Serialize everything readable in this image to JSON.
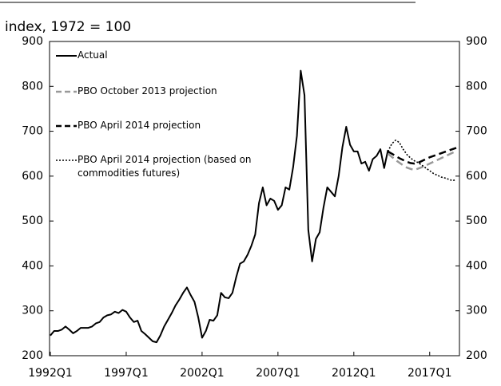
{
  "chart_data": {
    "type": "line",
    "axis_label": "index, 1972 = 100",
    "categories": [
      "1992Q1",
      null,
      null,
      null,
      null,
      null,
      null,
      null,
      null,
      null,
      null,
      null,
      null,
      null,
      null,
      null,
      null,
      null,
      null,
      null,
      "1997Q1",
      null,
      null,
      null,
      null,
      null,
      null,
      null,
      null,
      null,
      null,
      null,
      null,
      null,
      null,
      null,
      null,
      null,
      null,
      null,
      "2002Q1",
      null,
      null,
      null,
      null,
      null,
      null,
      null,
      null,
      null,
      null,
      null,
      null,
      null,
      null,
      null,
      null,
      null,
      null,
      null,
      "2007Q1",
      null,
      null,
      null,
      null,
      null,
      null,
      null,
      null,
      null,
      null,
      null,
      null,
      null,
      null,
      null,
      null,
      null,
      null,
      null,
      "2012Q1",
      null,
      null,
      null,
      null,
      null,
      null,
      null,
      null,
      null,
      null,
      null,
      null,
      null,
      null,
      null,
      null,
      null,
      null,
      null,
      "2017Q1",
      null,
      null,
      null,
      null,
      null,
      null,
      null
    ],
    "series": [
      {
        "name": "Actual",
        "color": "#000000",
        "style": "solid",
        "values": [
          245,
          255,
          255,
          258,
          265,
          258,
          250,
          255,
          262,
          262,
          262,
          265,
          272,
          275,
          285,
          290,
          292,
          298,
          295,
          302,
          298,
          285,
          275,
          278,
          255,
          248,
          240,
          232,
          230,
          245,
          265,
          280,
          295,
          312,
          325,
          340,
          352,
          335,
          320,
          285,
          240,
          255,
          280,
          278,
          290,
          340,
          330,
          328,
          340,
          375,
          405,
          410,
          425,
          445,
          470,
          540,
          575,
          535,
          550,
          545,
          525,
          535,
          575,
          570,
          620,
          690,
          835,
          780,
          480,
          410,
          460,
          475,
          530,
          575,
          565,
          555,
          600,
          665,
          710,
          670,
          655,
          655,
          628,
          632,
          612,
          638,
          645,
          660,
          618,
          658,
          null,
          null,
          null,
          null,
          null,
          null,
          null,
          null,
          null,
          null,
          null,
          null,
          null,
          null,
          null,
          null,
          null,
          null
        ]
      },
      {
        "name": "PBO October 2013 projection",
        "color": "#999999",
        "style": "dashed",
        "values": [
          null,
          null,
          null,
          null,
          null,
          null,
          null,
          null,
          null,
          null,
          null,
          null,
          null,
          null,
          null,
          null,
          null,
          null,
          null,
          null,
          null,
          null,
          null,
          null,
          null,
          null,
          null,
          null,
          null,
          null,
          null,
          null,
          null,
          null,
          null,
          null,
          null,
          null,
          null,
          null,
          null,
          null,
          null,
          null,
          null,
          null,
          null,
          null,
          null,
          null,
          null,
          null,
          null,
          null,
          null,
          null,
          null,
          null,
          null,
          null,
          null,
          null,
          null,
          null,
          null,
          null,
          null,
          null,
          null,
          null,
          null,
          null,
          null,
          null,
          null,
          null,
          null,
          null,
          null,
          null,
          null,
          null,
          null,
          null,
          null,
          null,
          null,
          null,
          null,
          650,
          643,
          636,
          630,
          624,
          619,
          616,
          614,
          617,
          620,
          624,
          628,
          632,
          636,
          640,
          644,
          648,
          652,
          656
        ]
      },
      {
        "name": "PBO April 2014 projection",
        "color": "#000000",
        "style": "dashed",
        "values": [
          null,
          null,
          null,
          null,
          null,
          null,
          null,
          null,
          null,
          null,
          null,
          null,
          null,
          null,
          null,
          null,
          null,
          null,
          null,
          null,
          null,
          null,
          null,
          null,
          null,
          null,
          null,
          null,
          null,
          null,
          null,
          null,
          null,
          null,
          null,
          null,
          null,
          null,
          null,
          null,
          null,
          null,
          null,
          null,
          null,
          null,
          null,
          null,
          null,
          null,
          null,
          null,
          null,
          null,
          null,
          null,
          null,
          null,
          null,
          null,
          null,
          null,
          null,
          null,
          null,
          null,
          null,
          null,
          null,
          null,
          null,
          null,
          null,
          null,
          null,
          null,
          null,
          null,
          null,
          null,
          null,
          null,
          null,
          null,
          null,
          null,
          null,
          null,
          null,
          655,
          650,
          645,
          640,
          636,
          632,
          629,
          628,
          630,
          634,
          638,
          642,
          645,
          648,
          651,
          654,
          657,
          660,
          663
        ]
      },
      {
        "name": "PBO April 2014 projection (based on commodities futures)",
        "color": "#000000",
        "style": "dotted",
        "values": [
          null,
          null,
          null,
          null,
          null,
          null,
          null,
          null,
          null,
          null,
          null,
          null,
          null,
          null,
          null,
          null,
          null,
          null,
          null,
          null,
          null,
          null,
          null,
          null,
          null,
          null,
          null,
          null,
          null,
          null,
          null,
          null,
          null,
          null,
          null,
          null,
          null,
          null,
          null,
          null,
          null,
          null,
          null,
          null,
          null,
          null,
          null,
          null,
          null,
          null,
          null,
          null,
          null,
          null,
          null,
          null,
          null,
          null,
          null,
          null,
          null,
          null,
          null,
          null,
          null,
          null,
          null,
          null,
          null,
          null,
          null,
          null,
          null,
          null,
          null,
          null,
          null,
          null,
          null,
          null,
          null,
          null,
          null,
          null,
          null,
          null,
          null,
          null,
          null,
          655,
          672,
          680,
          675,
          660,
          648,
          640,
          634,
          630,
          624,
          618,
          612,
          606,
          602,
          598,
          596,
          593,
          590,
          592
        ]
      }
    ],
    "ylim": [
      200,
      900
    ],
    "yticks": [
      200,
      300,
      400,
      500,
      600,
      700,
      800,
      900
    ],
    "y2lim": [
      200,
      900
    ],
    "y2ticks": [
      200,
      300,
      400,
      500,
      600,
      700,
      800,
      900
    ],
    "grid": false,
    "legend": "upper left"
  }
}
